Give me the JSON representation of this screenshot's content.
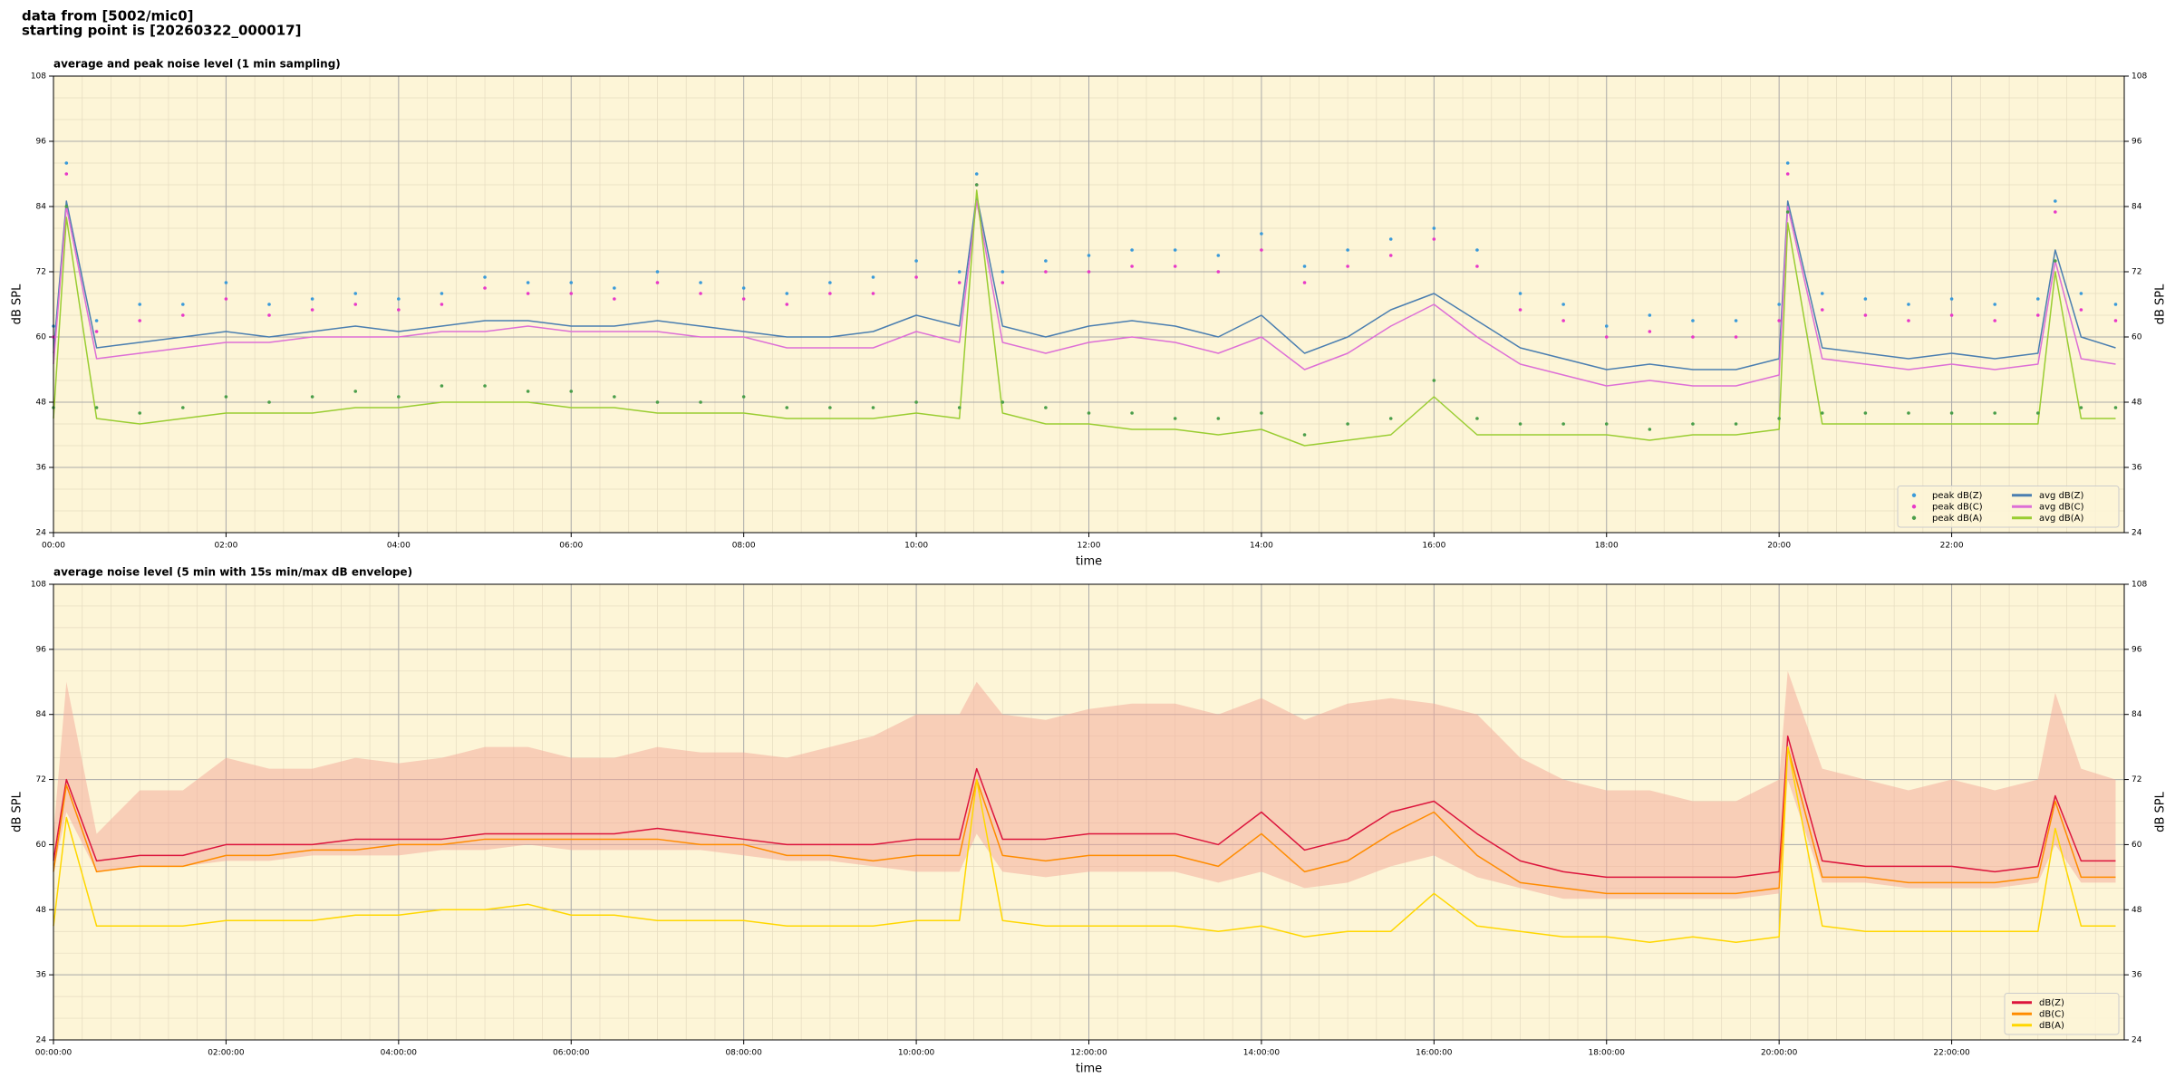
{
  "header": {
    "line1": "data from [5002/mic0]",
    "line2": "starting point is [20260322_000017]"
  },
  "chart_data": [
    {
      "type": "line",
      "title": "average and peak noise level (1 min sampling)",
      "xlabel": "time",
      "ylabel": "dB SPL",
      "y2label": "dB SPL",
      "x": [
        0,
        0.15,
        0.5,
        1,
        1.5,
        2,
        2.5,
        3,
        3.5,
        4,
        4.5,
        5,
        5.5,
        6,
        6.5,
        7,
        7.5,
        8,
        8.5,
        9,
        9.5,
        10,
        10.5,
        10.7,
        11,
        11.5,
        12,
        12.5,
        13,
        13.5,
        14,
        14.5,
        15,
        15.5,
        16,
        16.5,
        17,
        17.5,
        18,
        18.5,
        19,
        19.5,
        20,
        20.1,
        20.5,
        21,
        21.5,
        22,
        22.5,
        23,
        23.2,
        23.5,
        23.9
      ],
      "xlim": [
        0,
        24
      ],
      "xticks": [
        {
          "value": 0,
          "label": "00:00"
        },
        {
          "value": 2,
          "label": "02:00"
        },
        {
          "value": 4,
          "label": "04:00"
        },
        {
          "value": 6,
          "label": "06:00"
        },
        {
          "value": 8,
          "label": "08:00"
        },
        {
          "value": 10,
          "label": "10:00"
        },
        {
          "value": 12,
          "label": "12:00"
        },
        {
          "value": 14,
          "label": "14:00"
        },
        {
          "value": 16,
          "label": "16:00"
        },
        {
          "value": 18,
          "label": "18:00"
        },
        {
          "value": 20,
          "label": "20:00"
        },
        {
          "value": 22,
          "label": "22:00"
        }
      ],
      "ylim": [
        24,
        108
      ],
      "yticks": [
        24,
        36,
        48,
        60,
        72,
        84,
        96,
        108
      ],
      "y2lim": [
        24,
        108
      ],
      "y2ticks": [
        24,
        36,
        48,
        60,
        72,
        84,
        96,
        108
      ],
      "grid": true,
      "legend": "lower right",
      "legend_columns": 2,
      "series": [
        {
          "name": "peak dB(Z)",
          "style": "points",
          "color": "#3a9ad9",
          "values": [
            62,
            92,
            63,
            66,
            66,
            70,
            66,
            67,
            68,
            67,
            68,
            71,
            70,
            70,
            69,
            72,
            70,
            69,
            68,
            70,
            71,
            74,
            72,
            90,
            72,
            74,
            75,
            76,
            76,
            75,
            79,
            73,
            76,
            78,
            80,
            76,
            68,
            66,
            62,
            64,
            63,
            63,
            66,
            92,
            68,
            67,
            66,
            67,
            66,
            67,
            85,
            68,
            66
          ]
        },
        {
          "name": "peak dB(C)",
          "style": "points",
          "color": "#e838c8",
          "values": [
            60,
            90,
            61,
            63,
            64,
            67,
            64,
            65,
            66,
            65,
            66,
            69,
            68,
            68,
            67,
            70,
            68,
            67,
            66,
            68,
            68,
            71,
            70,
            88,
            70,
            72,
            72,
            73,
            73,
            72,
            76,
            70,
            73,
            75,
            78,
            73,
            65,
            63,
            60,
            61,
            60,
            60,
            63,
            90,
            65,
            64,
            63,
            64,
            63,
            64,
            83,
            65,
            63
          ]
        },
        {
          "name": "peak dB(A)",
          "style": "points",
          "color": "#4a9e4a",
          "values": [
            47,
            84,
            47,
            46,
            47,
            49,
            48,
            49,
            50,
            49,
            51,
            51,
            50,
            50,
            49,
            48,
            48,
            49,
            47,
            47,
            47,
            48,
            47,
            88,
            48,
            47,
            46,
            46,
            45,
            45,
            46,
            42,
            44,
            45,
            52,
            45,
            44,
            44,
            44,
            43,
            44,
            44,
            45,
            83,
            46,
            46,
            46,
            46,
            46,
            46,
            74,
            47,
            47
          ]
        },
        {
          "name": "avg dB(Z)",
          "style": "line",
          "color": "#4a7eb0",
          "values": [
            57,
            85,
            58,
            59,
            60,
            61,
            60,
            61,
            62,
            61,
            62,
            63,
            63,
            62,
            62,
            63,
            62,
            61,
            60,
            60,
            61,
            64,
            62,
            86,
            62,
            60,
            62,
            63,
            62,
            60,
            64,
            57,
            60,
            65,
            68,
            63,
            58,
            56,
            54,
            55,
            54,
            54,
            56,
            85,
            58,
            57,
            56,
            57,
            56,
            57,
            76,
            60,
            58
          ]
        },
        {
          "name": "avg dB(C)",
          "style": "line",
          "color": "#dd6fd6",
          "values": [
            55,
            84,
            56,
            57,
            58,
            59,
            59,
            60,
            60,
            60,
            61,
            61,
            62,
            61,
            61,
            61,
            60,
            60,
            58,
            58,
            58,
            61,
            59,
            85,
            59,
            57,
            59,
            60,
            59,
            57,
            60,
            54,
            57,
            62,
            66,
            60,
            55,
            53,
            51,
            52,
            51,
            51,
            53,
            84,
            56,
            55,
            54,
            55,
            54,
            55,
            74,
            56,
            55
          ]
        },
        {
          "name": "avg dB(A)",
          "style": "line",
          "color": "#9acd32",
          "values": [
            45,
            82,
            45,
            44,
            45,
            46,
            46,
            46,
            47,
            47,
            48,
            48,
            48,
            47,
            47,
            46,
            46,
            46,
            45,
            45,
            45,
            46,
            45,
            87,
            46,
            44,
            44,
            43,
            43,
            42,
            43,
            40,
            41,
            42,
            49,
            42,
            42,
            42,
            42,
            41,
            42,
            42,
            43,
            81,
            44,
            44,
            44,
            44,
            44,
            44,
            72,
            45,
            45
          ]
        }
      ]
    },
    {
      "type": "line",
      "title": "average noise level (5 min with 15s min/max dB envelope)",
      "xlabel": "time",
      "ylabel": "dB SPL",
      "y2label": "dB SPL",
      "x": [
        0,
        0.15,
        0.5,
        1,
        1.5,
        2,
        2.5,
        3,
        3.5,
        4,
        4.5,
        5,
        5.5,
        6,
        6.5,
        7,
        7.5,
        8,
        8.5,
        9,
        9.5,
        10,
        10.5,
        10.7,
        11,
        11.5,
        12,
        12.5,
        13,
        13.5,
        14,
        14.5,
        15,
        15.5,
        16,
        16.5,
        17,
        17.5,
        18,
        18.5,
        19,
        19.5,
        20,
        20.1,
        20.5,
        21,
        21.5,
        22,
        22.5,
        23,
        23.2,
        23.5,
        23.9
      ],
      "xlim": [
        0,
        24
      ],
      "xticks": [
        {
          "value": 0,
          "label": "00:00:00"
        },
        {
          "value": 2,
          "label": "02:00:00"
        },
        {
          "value": 4,
          "label": "04:00:00"
        },
        {
          "value": 6,
          "label": "06:00:00"
        },
        {
          "value": 8,
          "label": "08:00:00"
        },
        {
          "value": 10,
          "label": "10:00:00"
        },
        {
          "value": 12,
          "label": "12:00:00"
        },
        {
          "value": 14,
          "label": "14:00:00"
        },
        {
          "value": 16,
          "label": "16:00:00"
        },
        {
          "value": 18,
          "label": "18:00:00"
        },
        {
          "value": 20,
          "label": "20:00:00"
        },
        {
          "value": 22,
          "label": "22:00:00"
        }
      ],
      "ylim": [
        24,
        108
      ],
      "yticks": [
        24,
        36,
        48,
        60,
        72,
        84,
        96,
        108
      ],
      "y2lim": [
        24,
        108
      ],
      "y2ticks": [
        24,
        36,
        48,
        60,
        72,
        84,
        96,
        108
      ],
      "grid": true,
      "legend": "lower right",
      "legend_columns": 1,
      "band": {
        "color": "#f4a898",
        "lower": [
          55,
          66,
          55,
          56,
          56,
          57,
          57,
          58,
          58,
          58,
          59,
          59,
          60,
          59,
          59,
          59,
          59,
          58,
          57,
          57,
          56,
          55,
          55,
          62,
          55,
          54,
          55,
          55,
          55,
          53,
          55,
          52,
          53,
          56,
          58,
          54,
          52,
          50,
          50,
          50,
          50,
          50,
          51,
          72,
          53,
          53,
          52,
          52,
          52,
          53,
          60,
          53,
          53
        ],
        "upper": [
          62,
          90,
          62,
          70,
          70,
          76,
          74,
          74,
          76,
          75,
          76,
          78,
          78,
          76,
          76,
          78,
          77,
          77,
          76,
          78,
          80,
          84,
          84,
          90,
          84,
          83,
          85,
          86,
          86,
          84,
          87,
          83,
          86,
          87,
          86,
          84,
          76,
          72,
          70,
          70,
          68,
          68,
          72,
          92,
          74,
          72,
          70,
          72,
          70,
          72,
          88,
          74,
          72
        ]
      },
      "series": [
        {
          "name": "dB(Z)",
          "style": "line",
          "color": "#dc143c",
          "values": [
            57,
            72,
            57,
            58,
            58,
            60,
            60,
            60,
            61,
            61,
            61,
            62,
            62,
            62,
            62,
            63,
            62,
            61,
            60,
            60,
            60,
            61,
            61,
            74,
            61,
            61,
            62,
            62,
            62,
            60,
            66,
            59,
            61,
            66,
            68,
            62,
            57,
            55,
            54,
            54,
            54,
            54,
            55,
            80,
            57,
            56,
            56,
            56,
            55,
            56,
            69,
            57,
            57
          ]
        },
        {
          "name": "dB(C)",
          "style": "line",
          "color": "#ff8c00",
          "values": [
            55,
            71,
            55,
            56,
            56,
            58,
            58,
            59,
            59,
            60,
            60,
            61,
            61,
            61,
            61,
            61,
            60,
            60,
            58,
            58,
            57,
            58,
            58,
            72,
            58,
            57,
            58,
            58,
            58,
            56,
            62,
            55,
            57,
            62,
            66,
            58,
            53,
            52,
            51,
            51,
            51,
            51,
            52,
            78,
            54,
            54,
            53,
            53,
            53,
            54,
            68,
            54,
            54
          ]
        },
        {
          "name": "dB(A)",
          "style": "line",
          "color": "#ffd700",
          "values": [
            45,
            65,
            45,
            45,
            45,
            46,
            46,
            46,
            47,
            47,
            48,
            48,
            49,
            47,
            47,
            46,
            46,
            46,
            45,
            45,
            45,
            46,
            46,
            72,
            46,
            45,
            45,
            45,
            45,
            44,
            45,
            43,
            44,
            44,
            51,
            45,
            44,
            43,
            43,
            42,
            43,
            42,
            43,
            78,
            45,
            44,
            44,
            44,
            44,
            44,
            63,
            45,
            45
          ]
        }
      ]
    }
  ]
}
